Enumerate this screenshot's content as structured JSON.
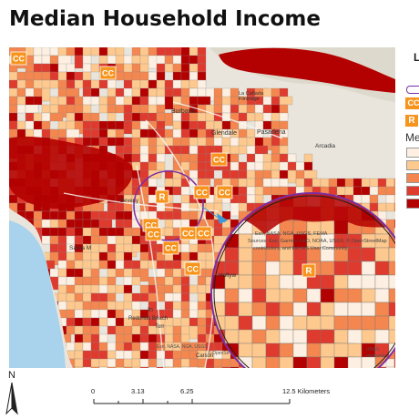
{
  "title": "Median Household Income",
  "map_labels": {
    "burbank": "Burbank",
    "la_canada": "La Cañada\nFlintridge",
    "glendale": "Glendale",
    "pasadena": "Pasadena",
    "arcadia": "Arcadia",
    "beverly_hills": "Beverly",
    "santa_monica": "Santa M",
    "inglewood": "In",
    "redondo_beach": "Redondo Beach",
    "torrance": "Torr",
    "carson": "Carson",
    "hollywood": "Hollyw",
    "attribution_1": "Esri, NASA, NGA, USGS, FEMA",
    "attribution_2": "Sources: Esri, Garmin, FAO, NOAA, USGS, © OpenStreetMap",
    "attribution_3": "contributors, and the GIS User Community",
    "attribution_bottom": "Esri, NASA, NGA, USGS",
    "attribution_bottom2": "© OpenStr",
    "attribution_bottom3": "USGS,",
    "attribution_bottom4": "ommunity"
  },
  "markers": {
    "cc_label": "CC",
    "r_label": "R"
  },
  "legend": {
    "title_fragment": "L",
    "median_fragment": "Me",
    "colors": [
      "#fdf0e2",
      "#fdc98f",
      "#f4874f",
      "#de3b2e",
      "#b30000"
    ],
    "ring_color": "#7b2fa6",
    "marker_color": "#f7941d"
  },
  "north_arrow": {
    "label": "N"
  },
  "scale_bar": {
    "ticks": [
      "0",
      "3.13",
      "6.25",
      "12.5 Kilometers"
    ]
  },
  "colors": {
    "water": "#a9d2ec",
    "land": "#e9e5dc",
    "inset_ring": "#7b2fa6"
  }
}
